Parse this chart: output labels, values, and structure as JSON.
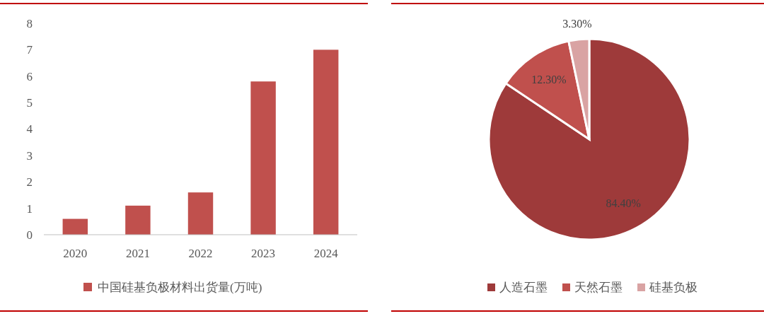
{
  "chart_data": [
    {
      "type": "bar",
      "categories": [
        "2020",
        "2021",
        "2022",
        "2023",
        "2024"
      ],
      "series": [
        {
          "name": "中国硅基负极材料出货量(万吨)",
          "color": "#c0504d",
          "values": [
            0.6,
            1.1,
            1.6,
            5.8,
            7.0
          ]
        }
      ],
      "ylim": [
        0,
        8
      ],
      "yticks": [
        0,
        1,
        2,
        3,
        4,
        5,
        6,
        7,
        8
      ],
      "grid": false,
      "legend": "bottom"
    },
    {
      "type": "pie",
      "categories": [
        "人造石墨",
        "天然石墨",
        "硅基负极"
      ],
      "values": [
        84.4,
        12.3,
        3.3
      ],
      "colors": [
        "#9e3a3a",
        "#c0504d",
        "#d9a3a3"
      ],
      "value_labels": [
        "84.40%",
        "12.30%",
        "3.30%"
      ],
      "legend": "bottom"
    }
  ]
}
